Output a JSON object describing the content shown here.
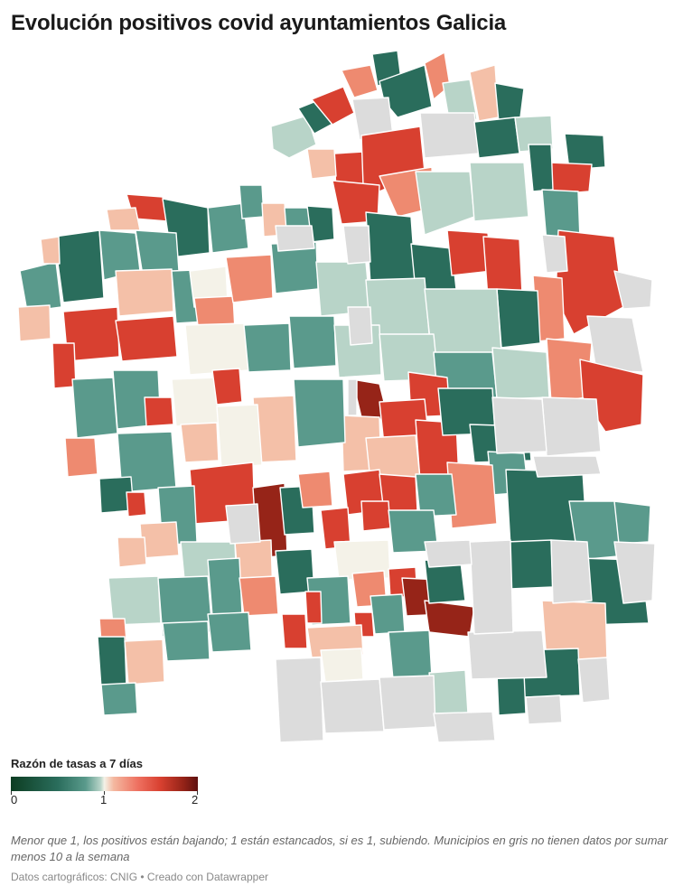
{
  "title": "Evolución positivos covid ayuntamientos Galicia",
  "legend": {
    "title": "Razón de tasas a 7 días",
    "min_label": "0",
    "mid_label": "1",
    "max_label": "2",
    "range": [
      0,
      2
    ]
  },
  "note": "Menor que 1, los positivos están bajando; 1 están estancados, si es 1, subiendo. Municipios en gris no tienen datos por sumar menos 10 a la semana",
  "source": "Datos cartográficos: CNIG • Creado con Datawrapper",
  "colors": {
    "no_data": "#dcdcdc",
    "dark_green": "#2a6d5c",
    "mid_green": "#5a9a8c",
    "light_green": "#b8d4c8",
    "neutral": "#f4f2e8",
    "light_red": "#f4c0a8",
    "mid_red": "#ee8a70",
    "red": "#d84030",
    "dark_red": "#962418"
  }
}
